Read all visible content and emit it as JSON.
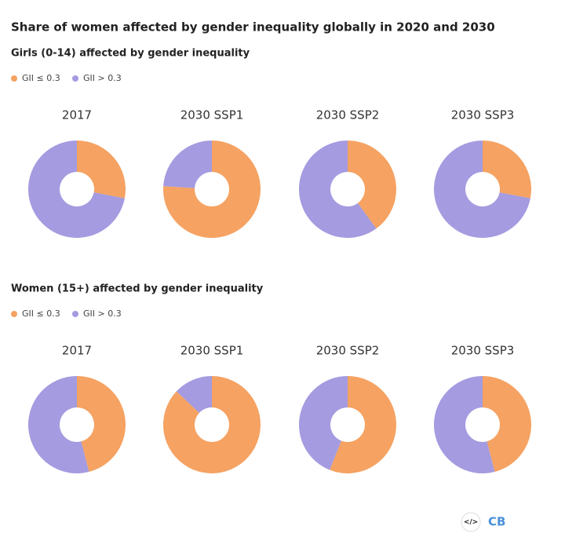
{
  "title": "Share of women affected by gender inequality globally in 2020 and 2030",
  "groups": [
    {
      "subtitle": "Girls (0-14) affected by gender inequality",
      "chart_data": [
        {
          "type": "pie",
          "title": "2017",
          "categories": [
            "GII ≤ 0.3",
            "GII > 0.3"
          ],
          "values": [
            28,
            72
          ],
          "colors": [
            "#f5a262",
            "#a49be0"
          ]
        },
        {
          "type": "pie",
          "title": "2030 SSP1",
          "categories": [
            "GII ≤ 0.3",
            "GII > 0.3"
          ],
          "values": [
            76,
            24
          ],
          "colors": [
            "#f5a262",
            "#a49be0"
          ]
        },
        {
          "type": "pie",
          "title": "2030 SSP2",
          "categories": [
            "GII ≤ 0.3",
            "GII > 0.3"
          ],
          "values": [
            40,
            60
          ],
          "colors": [
            "#f5a262",
            "#a49be0"
          ]
        },
        {
          "type": "pie",
          "title": "2030 SSP3",
          "categories": [
            "GII ≤ 0.3",
            "GII > 0.3"
          ],
          "values": [
            28,
            72
          ],
          "colors": [
            "#f5a262",
            "#a49be0"
          ]
        }
      ]
    },
    {
      "subtitle": "Women (15+) affected by gender inequality",
      "chart_data": [
        {
          "type": "pie",
          "title": "2017",
          "categories": [
            "GII ≤ 0.3",
            "GII > 0.3"
          ],
          "values": [
            46,
            54
          ],
          "colors": [
            "#f5a262",
            "#a49be0"
          ]
        },
        {
          "type": "pie",
          "title": "2030 SSP1",
          "categories": [
            "GII ≤ 0.3",
            "GII > 0.3"
          ],
          "values": [
            87,
            13
          ],
          "colors": [
            "#f5a262",
            "#a49be0"
          ]
        },
        {
          "type": "pie",
          "title": "2030 SSP2",
          "categories": [
            "GII ≤ 0.3",
            "GII > 0.3"
          ],
          "values": [
            56,
            44
          ],
          "colors": [
            "#f5a262",
            "#a49be0"
          ]
        },
        {
          "type": "pie",
          "title": "2030 SSP3",
          "categories": [
            "GII ≤ 0.3",
            "GII > 0.3"
          ],
          "values": [
            46,
            54
          ],
          "colors": [
            "#f5a262",
            "#a49be0"
          ]
        }
      ]
    }
  ],
  "logo_icon": "</>",
  "logo": "CB"
}
